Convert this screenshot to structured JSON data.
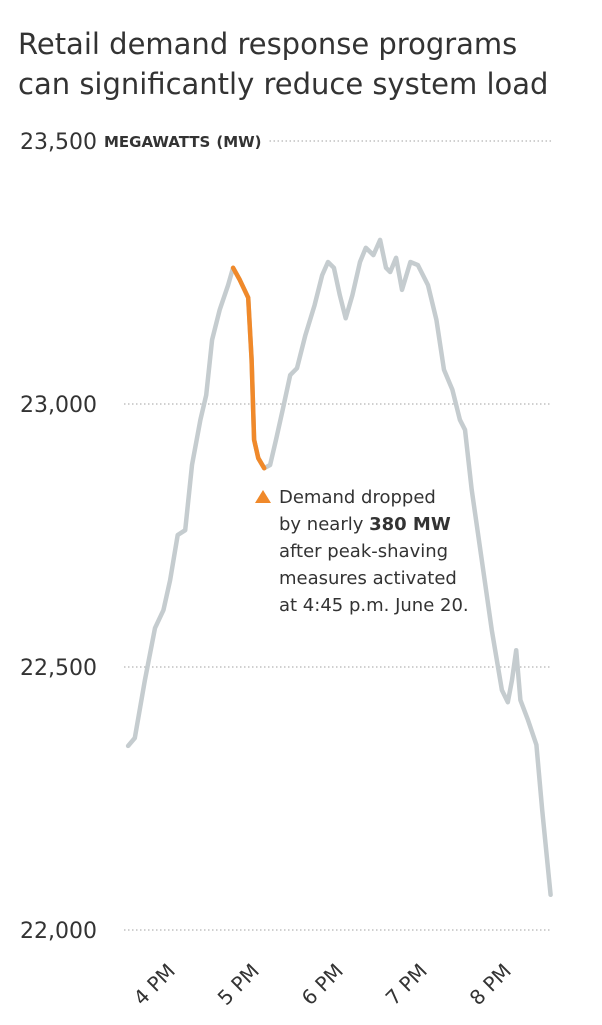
{
  "chart_data": {
    "type": "line",
    "title": [
      "Retail demand response programs",
      "can significantly reduce system load"
    ],
    "y_label": "MEGAWATTS",
    "y_unit": "(MW)",
    "ylim": [
      22000,
      23500
    ],
    "yticks": [
      {
        "value": 22000,
        "label": "22,000"
      },
      {
        "value": 22500,
        "label": "22,500"
      },
      {
        "value": 23000,
        "label": "23,000"
      },
      {
        "value": 23500,
        "label": "23,500"
      }
    ],
    "xlim": [
      15.5,
      21
    ],
    "xticks": [
      {
        "value": 16,
        "label": "4 PM"
      },
      {
        "value": 17,
        "label": "5 PM"
      },
      {
        "value": 18,
        "label": "6 PM"
      },
      {
        "value": 19,
        "label": "7 PM"
      },
      {
        "value": 20,
        "label": "8 PM"
      }
    ],
    "grid": true,
    "series": [
      {
        "color": "#c5cccf",
        "x": [
          15.68,
          15.76,
          15.88,
          16.0,
          16.1,
          16.18,
          16.27,
          16.36,
          16.44,
          16.54,
          16.61,
          16.68,
          16.77,
          16.87,
          16.93,
          17.01,
          17.11,
          17.15,
          17.18,
          17.23,
          17.3,
          17.37,
          17.44,
          17.52,
          17.61,
          17.69,
          17.79,
          17.9,
          17.99,
          18.06,
          18.13,
          18.2,
          18.27,
          18.35,
          18.44,
          18.51,
          18.6,
          18.68,
          18.75,
          18.8,
          18.87,
          18.94,
          19.04,
          19.13,
          19.25,
          19.35,
          19.44,
          19.54,
          19.63,
          19.69,
          19.77,
          19.89,
          20.01,
          20.13,
          20.2,
          20.25,
          20.3,
          20.35,
          20.44,
          20.54,
          20.61,
          20.71
        ],
        "values": [
          22350,
          22365,
          22475,
          22574,
          22608,
          22665,
          22751,
          22760,
          22884,
          22970,
          23017,
          23122,
          23179,
          23226,
          23259,
          23236,
          23202,
          23084,
          22932,
          22897,
          22878,
          22884,
          22932,
          22989,
          23055,
          23068,
          23131,
          23188,
          23245,
          23270,
          23259,
          23207,
          23163,
          23207,
          23270,
          23297,
          23283,
          23312,
          23259,
          23251,
          23278,
          23217,
          23270,
          23264,
          23226,
          23160,
          23065,
          23027,
          22970,
          22951,
          22837,
          22703,
          22570,
          22456,
          22433,
          22475,
          22532,
          22437,
          22399,
          22352,
          22228,
          22067
        ]
      },
      {
        "color": "#f0892a",
        "x": [
          16.93,
          17.01,
          17.11,
          17.15,
          17.18,
          17.23,
          17.3
        ],
        "values": [
          23259,
          23236,
          23202,
          23084,
          22932,
          22897,
          22878
        ]
      }
    ],
    "annotation": {
      "color": "#f0892a",
      "lines": [
        [
          "Demand dropped"
        ],
        [
          "by nearly ",
          "380 MW"
        ],
        [
          "after peak-shaving"
        ],
        [
          "measures activated"
        ],
        [
          "at 4:45 p.m. June 20."
        ]
      ]
    }
  }
}
